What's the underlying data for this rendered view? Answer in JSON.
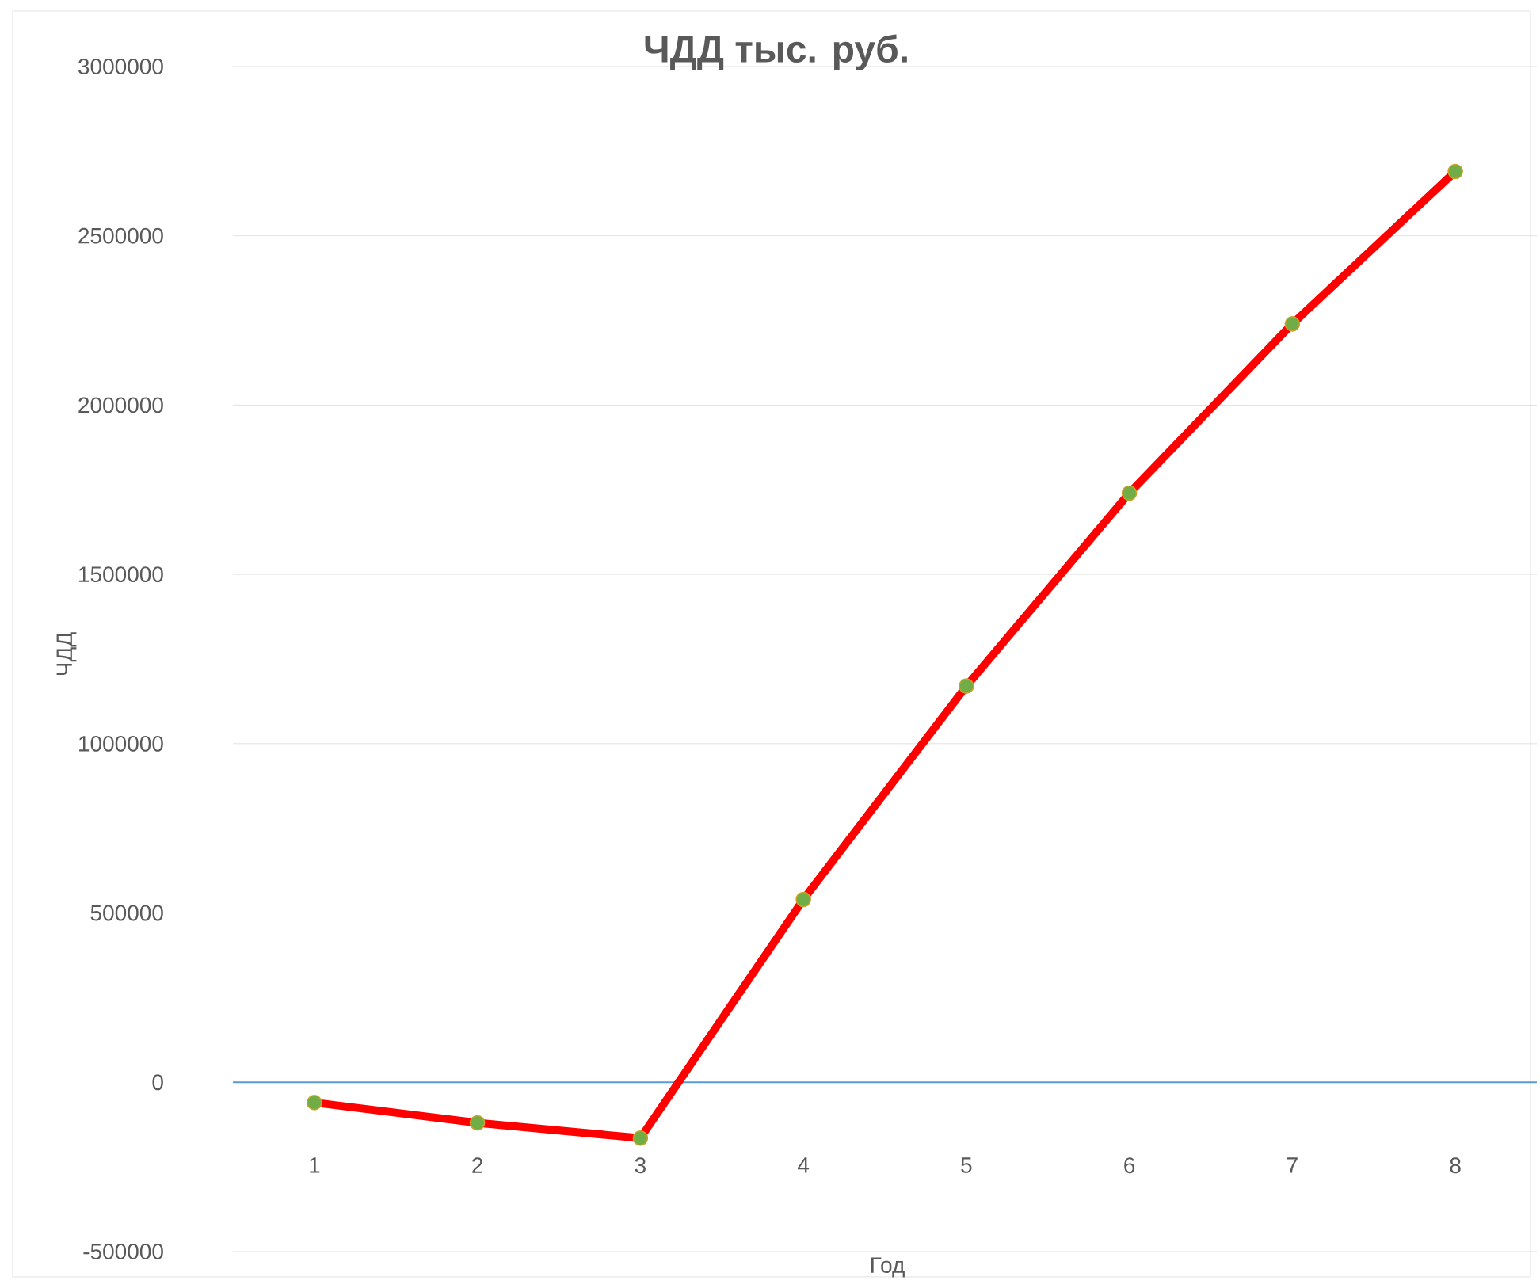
{
  "chart_data": {
    "type": "line",
    "title": "ЧДД тыс. руб.",
    "xlabel": "Год",
    "ylabel": "ЧДД",
    "categories": [
      "1",
      "2",
      "3",
      "4",
      "5",
      "6",
      "7",
      "8"
    ],
    "series": [
      {
        "color": "#ff0000",
        "values": [
          -60000,
          -120000,
          -165000,
          540000,
          1170000,
          1740000,
          2240000,
          2690000
        ]
      }
    ],
    "ylim": [
      -500000,
      3000000
    ],
    "yticks": [
      -500000,
      0,
      500000,
      1000000,
      1500000,
      2000000,
      2500000,
      3000000
    ],
    "ref_lines": [
      {
        "axis": "y",
        "value": 0,
        "color": "#5b9bd5"
      }
    ],
    "grid": "y",
    "marker": "circle",
    "line_style": "solid"
  }
}
